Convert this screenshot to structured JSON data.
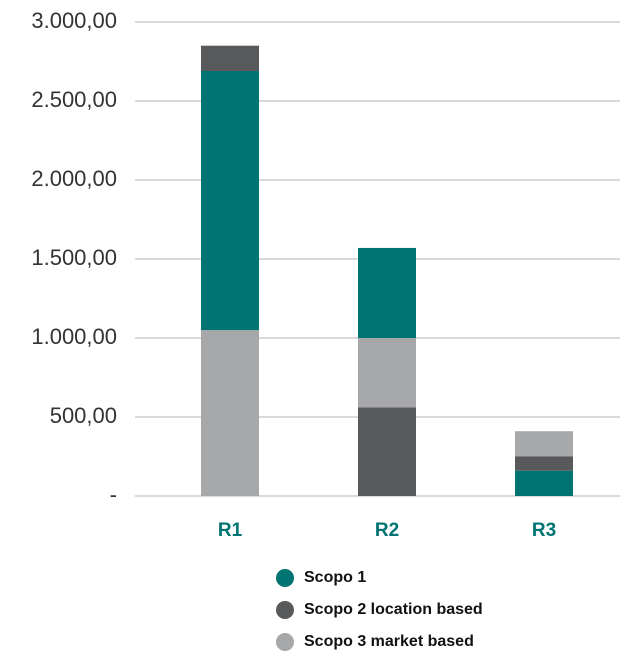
{
  "chart_data": {
    "type": "stacked_bar",
    "categories": [
      "R1",
      "R2",
      "R3"
    ],
    "series": [
      {
        "name": "Scopo 1",
        "color": "#007373",
        "values": [
          1640,
          570,
          160
        ]
      },
      {
        "name": "Scopo 2 location based",
        "color": "#58595b",
        "values": [
          160,
          560,
          90
        ]
      },
      {
        "name": "Scopo 3 market based",
        "color": "#a7a8aa",
        "values": [
          1050,
          440,
          160
        ]
      }
    ],
    "ylim": [
      0,
      3000
    ],
    "yticks": [
      {
        "value": 0,
        "label": "-"
      },
      {
        "value": 500,
        "label": "500,00"
      },
      {
        "value": 1000,
        "label": "1.000,00"
      },
      {
        "value": 1500,
        "label": "1.500,00"
      },
      {
        "value": 2000,
        "label": "2.000,00"
      },
      {
        "value": 2500,
        "label": "2.500,00"
      },
      {
        "value": 3000,
        "label": "3.000,00"
      }
    ],
    "grid": true
  }
}
